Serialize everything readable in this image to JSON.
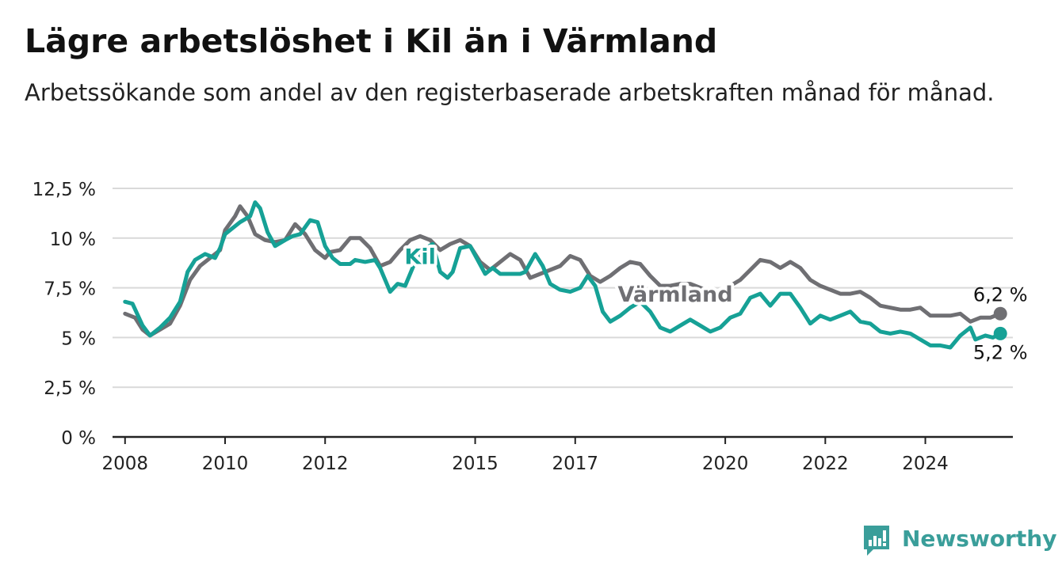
{
  "title": "Lägre arbetslöshet i Kil än i Värmland",
  "subtitle": "Arbetssökande som andel av den registerbaserade arbetskraften månad för månad.",
  "brand": {
    "name": "Newsworthy",
    "color": "#3a9e9a",
    "icon": "newsworthy-logo-icon"
  },
  "colors": {
    "kil": "#16a196",
    "varmland": "#6f6f73",
    "grid": "#d9d9d9",
    "axis": "#222222"
  },
  "chart_data": {
    "type": "line",
    "ylim": [
      0,
      12.5
    ],
    "yticks": [
      0,
      2.5,
      5,
      7.5,
      10,
      12.5
    ],
    "ytick_labels": [
      "0 %",
      "2,5 %",
      "5 %",
      "7,5 %",
      "10 %",
      "12,5 %"
    ],
    "xlim": [
      2007.75,
      2025.75
    ],
    "xticks": [
      2008,
      2010,
      2012,
      2015,
      2017,
      2020,
      2022,
      2024
    ],
    "xtick_labels": [
      "2008",
      "2010",
      "2012",
      "2015",
      "2017",
      "2020",
      "2022",
      "2024"
    ],
    "grid": true,
    "series": [
      {
        "name": "Värmland",
        "label_x": 2019.0,
        "label_y": 6.8,
        "end_label": "6,2 %",
        "points": [
          [
            2008.0,
            6.2
          ],
          [
            2008.2,
            6.0
          ],
          [
            2008.35,
            5.4
          ],
          [
            2008.5,
            5.1
          ],
          [
            2008.7,
            5.4
          ],
          [
            2008.9,
            5.7
          ],
          [
            2009.1,
            6.6
          ],
          [
            2009.3,
            7.9
          ],
          [
            2009.5,
            8.6
          ],
          [
            2009.7,
            9.0
          ],
          [
            2009.9,
            9.4
          ],
          [
            2010.0,
            10.4
          ],
          [
            2010.2,
            11.1
          ],
          [
            2010.3,
            11.6
          ],
          [
            2010.45,
            11.1
          ],
          [
            2010.6,
            10.2
          ],
          [
            2010.8,
            9.9
          ],
          [
            2011.0,
            9.8
          ],
          [
            2011.2,
            9.9
          ],
          [
            2011.4,
            10.7
          ],
          [
            2011.6,
            10.2
          ],
          [
            2011.8,
            9.4
          ],
          [
            2012.0,
            9.0
          ],
          [
            2012.1,
            9.3
          ],
          [
            2012.3,
            9.4
          ],
          [
            2012.5,
            10.0
          ],
          [
            2012.7,
            10.0
          ],
          [
            2012.9,
            9.5
          ],
          [
            2013.1,
            8.6
          ],
          [
            2013.3,
            8.8
          ],
          [
            2013.5,
            9.4
          ],
          [
            2013.7,
            9.9
          ],
          [
            2013.9,
            10.1
          ],
          [
            2014.1,
            9.9
          ],
          [
            2014.3,
            9.4
          ],
          [
            2014.5,
            9.7
          ],
          [
            2014.7,
            9.9
          ],
          [
            2014.9,
            9.6
          ],
          [
            2015.1,
            8.8
          ],
          [
            2015.3,
            8.4
          ],
          [
            2015.5,
            8.8
          ],
          [
            2015.7,
            9.2
          ],
          [
            2015.9,
            8.9
          ],
          [
            2016.1,
            8.0
          ],
          [
            2016.3,
            8.2
          ],
          [
            2016.5,
            8.4
          ],
          [
            2016.7,
            8.6
          ],
          [
            2016.9,
            9.1
          ],
          [
            2017.1,
            8.9
          ],
          [
            2017.3,
            8.1
          ],
          [
            2017.5,
            7.8
          ],
          [
            2017.7,
            8.1
          ],
          [
            2017.9,
            8.5
          ],
          [
            2018.1,
            8.8
          ],
          [
            2018.3,
            8.7
          ],
          [
            2018.5,
            8.1
          ],
          [
            2018.7,
            7.6
          ],
          [
            2018.9,
            7.6
          ],
          [
            2019.1,
            7.7
          ],
          [
            2019.3,
            7.7
          ],
          [
            2019.5,
            7.5
          ],
          [
            2019.7,
            7.3
          ],
          [
            2019.9,
            7.3
          ],
          [
            2020.1,
            7.6
          ],
          [
            2020.3,
            7.9
          ],
          [
            2020.5,
            8.4
          ],
          [
            2020.7,
            8.9
          ],
          [
            2020.9,
            8.8
          ],
          [
            2021.1,
            8.5
          ],
          [
            2021.3,
            8.8
          ],
          [
            2021.5,
            8.5
          ],
          [
            2021.7,
            7.9
          ],
          [
            2021.9,
            7.6
          ],
          [
            2022.1,
            7.4
          ],
          [
            2022.3,
            7.2
          ],
          [
            2022.5,
            7.2
          ],
          [
            2022.7,
            7.3
          ],
          [
            2022.9,
            7.0
          ],
          [
            2023.1,
            6.6
          ],
          [
            2023.3,
            6.5
          ],
          [
            2023.5,
            6.4
          ],
          [
            2023.7,
            6.4
          ],
          [
            2023.9,
            6.5
          ],
          [
            2024.1,
            6.1
          ],
          [
            2024.3,
            6.1
          ],
          [
            2024.5,
            6.1
          ],
          [
            2024.7,
            6.2
          ],
          [
            2024.9,
            5.8
          ],
          [
            2025.1,
            6.0
          ],
          [
            2025.3,
            6.0
          ],
          [
            2025.5,
            6.2
          ]
        ]
      },
      {
        "name": "Kil",
        "label_x": 2013.9,
        "label_y": 8.7,
        "end_label": "5,2 %",
        "points": [
          [
            2008.0,
            6.8
          ],
          [
            2008.15,
            6.7
          ],
          [
            2008.35,
            5.6
          ],
          [
            2008.5,
            5.1
          ],
          [
            2008.7,
            5.5
          ],
          [
            2008.9,
            6.0
          ],
          [
            2009.1,
            6.8
          ],
          [
            2009.25,
            8.3
          ],
          [
            2009.4,
            8.9
          ],
          [
            2009.6,
            9.2
          ],
          [
            2009.8,
            9.0
          ],
          [
            2009.9,
            9.5
          ],
          [
            2010.0,
            10.2
          ],
          [
            2010.15,
            10.5
          ],
          [
            2010.3,
            10.8
          ],
          [
            2010.5,
            11.1
          ],
          [
            2010.6,
            11.8
          ],
          [
            2010.7,
            11.5
          ],
          [
            2010.85,
            10.3
          ],
          [
            2011.0,
            9.6
          ],
          [
            2011.2,
            9.9
          ],
          [
            2011.35,
            10.1
          ],
          [
            2011.5,
            10.2
          ],
          [
            2011.7,
            10.9
          ],
          [
            2011.85,
            10.8
          ],
          [
            2012.0,
            9.6
          ],
          [
            2012.15,
            9.0
          ],
          [
            2012.3,
            8.7
          ],
          [
            2012.5,
            8.7
          ],
          [
            2012.6,
            8.9
          ],
          [
            2012.8,
            8.8
          ],
          [
            2013.0,
            8.9
          ],
          [
            2013.1,
            8.5
          ],
          [
            2013.3,
            7.3
          ],
          [
            2013.45,
            7.7
          ],
          [
            2013.6,
            7.6
          ],
          [
            2013.8,
            8.8
          ],
          [
            2013.95,
            9.4
          ],
          [
            2014.15,
            9.7
          ],
          [
            2014.3,
            8.3
          ],
          [
            2014.45,
            8.0
          ],
          [
            2014.55,
            8.3
          ],
          [
            2014.7,
            9.5
          ],
          [
            2014.9,
            9.6
          ],
          [
            2015.05,
            8.9
          ],
          [
            2015.2,
            8.2
          ],
          [
            2015.35,
            8.5
          ],
          [
            2015.5,
            8.2
          ],
          [
            2015.7,
            8.2
          ],
          [
            2015.9,
            8.2
          ],
          [
            2016.0,
            8.3
          ],
          [
            2016.2,
            9.2
          ],
          [
            2016.35,
            8.6
          ],
          [
            2016.5,
            7.7
          ],
          [
            2016.7,
            7.4
          ],
          [
            2016.9,
            7.3
          ],
          [
            2017.1,
            7.5
          ],
          [
            2017.25,
            8.1
          ],
          [
            2017.4,
            7.6
          ],
          [
            2017.55,
            6.3
          ],
          [
            2017.7,
            5.8
          ],
          [
            2017.9,
            6.1
          ],
          [
            2018.1,
            6.5
          ],
          [
            2018.3,
            6.8
          ],
          [
            2018.5,
            6.3
          ],
          [
            2018.7,
            5.5
          ],
          [
            2018.9,
            5.3
          ],
          [
            2019.1,
            5.6
          ],
          [
            2019.3,
            5.9
          ],
          [
            2019.5,
            5.6
          ],
          [
            2019.7,
            5.3
          ],
          [
            2019.9,
            5.5
          ],
          [
            2020.1,
            6.0
          ],
          [
            2020.3,
            6.2
          ],
          [
            2020.5,
            7.0
          ],
          [
            2020.7,
            7.2
          ],
          [
            2020.9,
            6.6
          ],
          [
            2021.1,
            7.2
          ],
          [
            2021.3,
            7.2
          ],
          [
            2021.5,
            6.5
          ],
          [
            2021.7,
            5.7
          ],
          [
            2021.9,
            6.1
          ],
          [
            2022.1,
            5.9
          ],
          [
            2022.3,
            6.1
          ],
          [
            2022.5,
            6.3
          ],
          [
            2022.7,
            5.8
          ],
          [
            2022.9,
            5.7
          ],
          [
            2023.1,
            5.3
          ],
          [
            2023.3,
            5.2
          ],
          [
            2023.5,
            5.3
          ],
          [
            2023.7,
            5.2
          ],
          [
            2023.9,
            4.9
          ],
          [
            2024.1,
            4.6
          ],
          [
            2024.3,
            4.6
          ],
          [
            2024.5,
            4.5
          ],
          [
            2024.7,
            5.1
          ],
          [
            2024.9,
            5.5
          ],
          [
            2025.0,
            4.9
          ],
          [
            2025.2,
            5.1
          ],
          [
            2025.35,
            5.0
          ],
          [
            2025.5,
            5.2
          ]
        ]
      }
    ]
  }
}
